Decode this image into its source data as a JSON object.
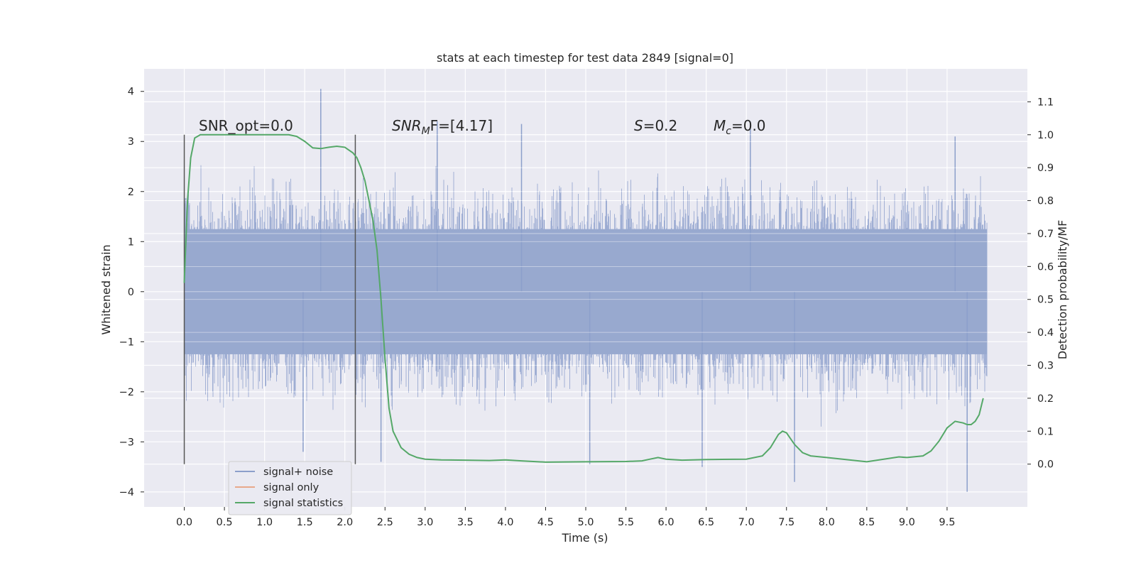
{
  "chart_data": {
    "type": "line",
    "title": "stats at each timestep for test data 2849 [signal=0]",
    "xlabel": "Time (s)",
    "ylabel_left": "Whitened strain",
    "ylabel_right": "Detection probability/MF",
    "xlim": [
      -0.5,
      10.5
    ],
    "ylim_left": [
      -4.3,
      4.45
    ],
    "ylim_right": [
      -0.13,
      1.2
    ],
    "x_ticks": [
      "0.0",
      "0.5",
      "1.0",
      "1.5",
      "2.0",
      "2.5",
      "3.0",
      "3.5",
      "4.0",
      "4.5",
      "5.0",
      "5.5",
      "6.0",
      "6.5",
      "7.0",
      "7.5",
      "8.0",
      "8.5",
      "9.0",
      "9.5"
    ],
    "x_tick_values": [
      0,
      0.5,
      1,
      1.5,
      2,
      2.5,
      3,
      3.5,
      4,
      4.5,
      5,
      5.5,
      6,
      6.5,
      7,
      7.5,
      8,
      8.5,
      9,
      9.5
    ],
    "y_left_ticks": [
      "4",
      "3",
      "2",
      "1",
      "0",
      "−1",
      "−2",
      "−3",
      "−4"
    ],
    "y_left_tick_values": [
      4,
      3,
      2,
      1,
      0,
      -1,
      -2,
      -3,
      -4
    ],
    "y_right_ticks": [
      "1.1",
      "1.0",
      "0.9",
      "0.8",
      "0.7",
      "0.6",
      "0.5",
      "0.4",
      "0.3",
      "0.2",
      "0.1",
      "0.0"
    ],
    "y_right_tick_values": [
      1.1,
      1.0,
      0.9,
      0.8,
      0.7,
      0.6,
      0.5,
      0.4,
      0.3,
      0.2,
      0.1,
      0.0
    ],
    "grid": true,
    "legend_position": "lower-left",
    "legend": [
      {
        "label": "signal+ noise",
        "color": "#8c9fcb"
      },
      {
        "label": "signal only",
        "color": "#e8a88a"
      },
      {
        "label": "signal statistics",
        "color": "#55a868"
      }
    ],
    "annotations": {
      "snr_opt": "SNR_opt=0.0",
      "snr_mf_main": "SNR",
      "snr_mf_sub": "M",
      "snr_mf_tail": "F=[4.17]",
      "s_italic": "S",
      "s_value": "=0.2",
      "mc_main": "M",
      "mc_sub": "c",
      "mc_value": "=0.0"
    },
    "markers_x": [
      0.0,
      2.13
    ],
    "noise_series": {
      "name": "signal+ noise",
      "x_range": [
        0.0,
        10.0
      ],
      "core_band": [
        -1.25,
        1.25
      ],
      "envelope_upper": 2.2,
      "envelope_lower": -2.2,
      "peaks": [
        {
          "x": 1.7,
          "y": 4.05
        },
        {
          "x": 3.15,
          "y": 3.4
        },
        {
          "x": 4.2,
          "y": 3.35
        },
        {
          "x": 7.05,
          "y": 3.4
        },
        {
          "x": 9.6,
          "y": 3.1
        },
        {
          "x": 2.45,
          "y": -3.4
        },
        {
          "x": 5.05,
          "y": -3.45
        },
        {
          "x": 7.6,
          "y": -3.8
        },
        {
          "x": 9.75,
          "y": -4.0
        },
        {
          "x": 6.45,
          "y": -3.5
        },
        {
          "x": 1.48,
          "y": -3.2
        }
      ]
    },
    "signal_only_series": {
      "name": "signal only",
      "values": []
    },
    "statistics_series": {
      "name": "signal statistics",
      "x": [
        0.0,
        0.04,
        0.08,
        0.13,
        0.2,
        0.3,
        0.5,
        0.8,
        1.0,
        1.2,
        1.3,
        1.4,
        1.5,
        1.6,
        1.7,
        1.8,
        1.9,
        2.0,
        2.1,
        2.15,
        2.2,
        2.25,
        2.3,
        2.35,
        2.4,
        2.45,
        2.5,
        2.55,
        2.6,
        2.7,
        2.8,
        2.9,
        3.0,
        3.2,
        3.5,
        3.8,
        4.0,
        4.2,
        4.5,
        5.0,
        5.5,
        5.7,
        5.8,
        5.9,
        6.0,
        6.2,
        6.5,
        7.0,
        7.2,
        7.3,
        7.4,
        7.45,
        7.5,
        7.6,
        7.7,
        7.8,
        8.0,
        8.5,
        8.8,
        8.9,
        9.0,
        9.2,
        9.3,
        9.4,
        9.5,
        9.6,
        9.7,
        9.75,
        9.8,
        9.85,
        9.9,
        9.95
      ],
      "y": [
        0.55,
        0.8,
        0.93,
        0.99,
        1.0,
        1.0,
        1.0,
        1.0,
        1.0,
        1.0,
        1.0,
        0.995,
        0.98,
        0.96,
        0.958,
        0.962,
        0.965,
        0.962,
        0.945,
        0.93,
        0.9,
        0.86,
        0.8,
        0.74,
        0.65,
        0.5,
        0.32,
        0.17,
        0.1,
        0.05,
        0.03,
        0.02,
        0.015,
        0.013,
        0.012,
        0.011,
        0.013,
        0.01,
        0.006,
        0.007,
        0.008,
        0.01,
        0.015,
        0.02,
        0.015,
        0.012,
        0.014,
        0.015,
        0.025,
        0.05,
        0.09,
        0.1,
        0.095,
        0.06,
        0.035,
        0.025,
        0.02,
        0.007,
        0.018,
        0.022,
        0.02,
        0.025,
        0.04,
        0.07,
        0.11,
        0.13,
        0.125,
        0.12,
        0.12,
        0.13,
        0.15,
        0.2
      ]
    }
  }
}
